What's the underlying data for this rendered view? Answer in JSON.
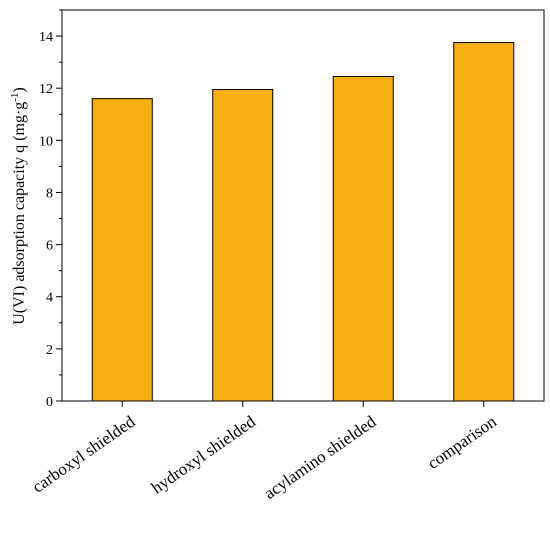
{
  "chart_data": {
    "type": "bar",
    "categories": [
      "carboxyl shielded",
      "hydroxyl shielded",
      "acylamino shielded",
      "comparison"
    ],
    "values": [
      11.6,
      11.95,
      12.45,
      13.75
    ],
    "ylabel_main": "U(VI) adsorption capacity q (mg·g",
    "ylabel_sup": "-1",
    "ylabel_close": ")",
    "ylim": [
      0,
      15
    ],
    "yticks": [
      "0",
      "2",
      "4",
      "6",
      "8",
      "10",
      "12",
      "14"
    ],
    "bar_color": "#F7AE12",
    "grid": false
  }
}
